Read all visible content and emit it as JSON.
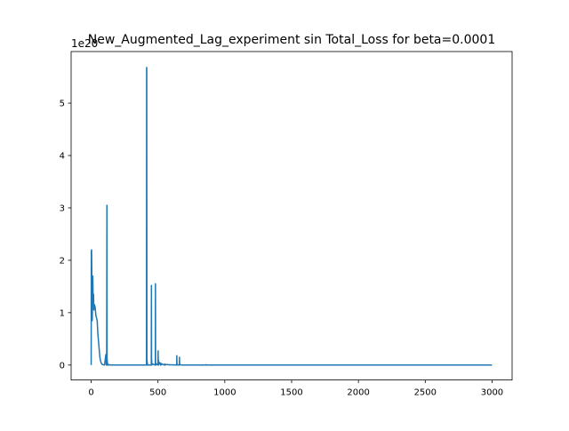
{
  "chart_data": {
    "type": "line",
    "title": "New_Augmented_Lag_experiment sin Total_Loss for beta=0.0001",
    "xlabel": "",
    "ylabel": "",
    "y_scale_label": "1e20",
    "xlim": [
      -150,
      3150
    ],
    "ylim": [
      -0.285,
      5.985
    ],
    "x_ticks": [
      0,
      500,
      1000,
      1500,
      2000,
      2500,
      3000
    ],
    "x_tick_labels": [
      "0",
      "500",
      "1000",
      "1500",
      "2000",
      "2500",
      "3000"
    ],
    "y_ticks": [
      0,
      1,
      2,
      3,
      4,
      5
    ],
    "y_tick_labels": [
      "0",
      "1",
      "2",
      "3",
      "4",
      "5"
    ],
    "grid": false,
    "series": [
      {
        "color": "#1f77b4",
        "x": [
          0,
          1,
          2,
          3,
          4,
          5,
          6,
          8,
          10,
          12,
          15,
          18,
          20,
          25,
          30,
          35,
          40,
          45,
          50,
          55,
          60,
          65,
          70,
          75,
          80,
          85,
          90,
          95,
          100,
          105,
          110,
          112,
          113,
          114,
          115,
          116,
          118,
          119,
          120,
          121,
          122,
          123,
          124,
          126,
          130,
          135,
          140,
          150,
          200,
          300,
          400,
          414,
          415,
          416,
          417,
          418,
          419,
          420,
          421,
          422,
          440,
          450,
          451,
          452,
          453,
          454,
          460,
          480,
          481,
          482,
          483,
          484,
          490,
          500,
          501,
          502,
          503,
          504,
          510,
          520,
          521,
          522,
          530,
          540,
          550,
          551,
          552,
          560,
          570,
          580,
          590,
          600,
          610,
          620,
          630,
          640,
          641,
          642,
          643,
          650,
          660,
          661,
          662,
          663,
          670,
          680,
          700,
          800,
          860,
          861,
          862,
          900,
          950,
          1000,
          1500,
          2000,
          2500,
          3000
        ],
        "y": [
          0.0,
          2.18,
          2.15,
          2.2,
          1.95,
          1.65,
          1.3,
          0.85,
          1.25,
          1.7,
          1.2,
          1.35,
          1.05,
          1.15,
          1.1,
          0.95,
          0.9,
          0.85,
          0.6,
          0.45,
          0.3,
          0.15,
          0.08,
          0.04,
          0.02,
          0.01,
          0.005,
          0.003,
          0.003,
          0.1,
          0.2,
          0.15,
          0.0,
          0.18,
          0.22,
          0.0,
          3.05,
          0.0,
          0.1,
          0.0,
          0.05,
          0.0,
          0.02,
          0.0,
          0.01,
          0.0,
          0.005,
          0.0,
          0.0,
          0.0,
          0.0,
          0.0,
          5.68,
          5.68,
          0.0,
          0.1,
          0.0,
          0.05,
          0.0,
          0.0,
          0.0,
          0.0,
          1.52,
          0.0,
          0.1,
          0.0,
          0.02,
          0.0,
          1.55,
          0.0,
          0.05,
          0.0,
          0.02,
          0.0,
          0.27,
          0.0,
          0.1,
          0.0,
          0.05,
          0.0,
          0.04,
          0.0,
          0.02,
          0.01,
          0.0,
          0.02,
          0.0,
          0.01,
          0.01,
          0.005,
          0.005,
          0.005,
          0.002,
          0.002,
          0.002,
          0.0,
          0.18,
          0.0,
          0.02,
          0.0,
          0.0,
          0.15,
          0.0,
          0.01,
          0.005,
          0.0,
          0.0,
          0.0,
          0.0,
          0.01,
          0.0,
          0.0,
          0.0,
          0.0,
          0.0,
          0.0,
          0.0,
          0.0
        ]
      }
    ]
  }
}
